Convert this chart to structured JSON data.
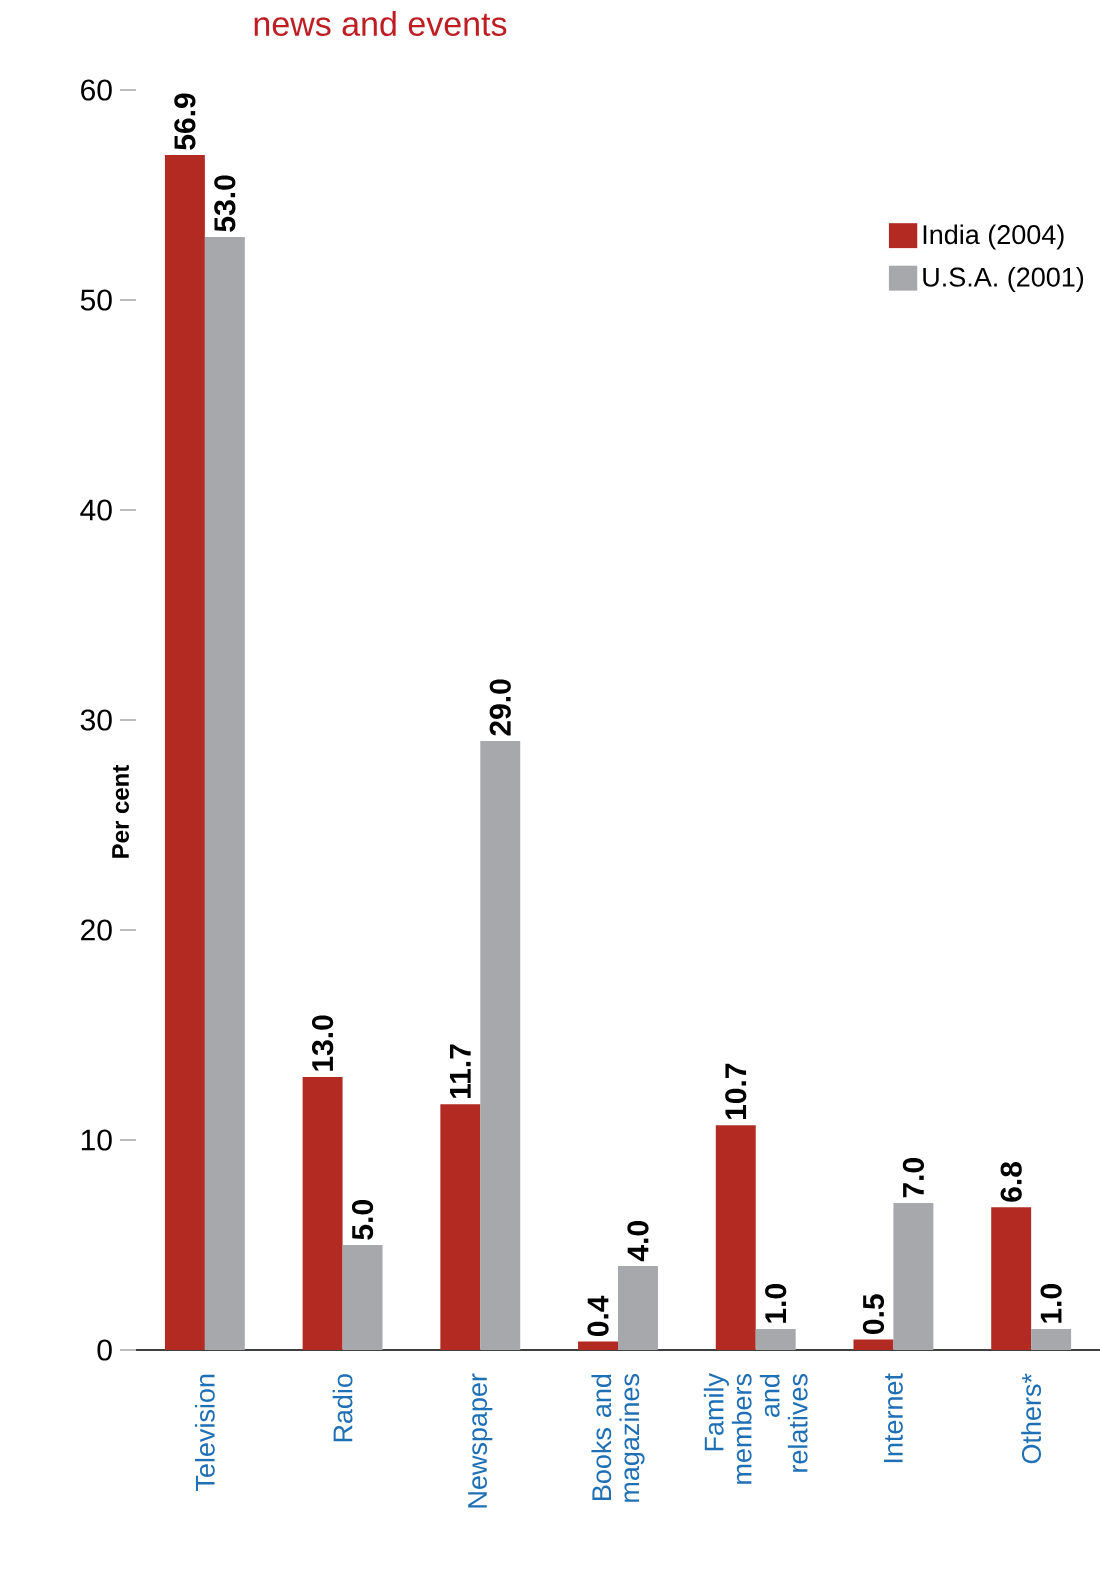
{
  "chart_data": {
    "type": "bar",
    "title": "news and events",
    "ylabel": "Per cent",
    "categories": [
      "Television",
      "Radio",
      "Newspaper",
      "Books and magazines",
      "Family members and relatives",
      "Internet",
      "Others*"
    ],
    "series": [
      {
        "name": "India (2004)",
        "color": "#b22a22",
        "values": [
          56.9,
          13.0,
          11.7,
          0.4,
          10.7,
          0.5,
          6.8
        ],
        "value_labels": [
          "56.9",
          "13.0",
          "11.7",
          "0.4",
          "10.7",
          "0.5",
          "6.8"
        ]
      },
      {
        "name": "U.S.A. (2001)",
        "color": "#a7a8ab",
        "values": [
          53.0,
          5.0,
          29.0,
          4.0,
          1.0,
          7.0,
          1.0
        ],
        "value_labels": [
          "53.0",
          "5.0",
          "29.0",
          "4.0",
          "1.0",
          "7.0",
          "1.0"
        ]
      }
    ],
    "ylim": [
      0,
      60
    ],
    "yticks": [
      0,
      10,
      20,
      30,
      40,
      50,
      60
    ],
    "grid": false,
    "legend": "top right"
  }
}
